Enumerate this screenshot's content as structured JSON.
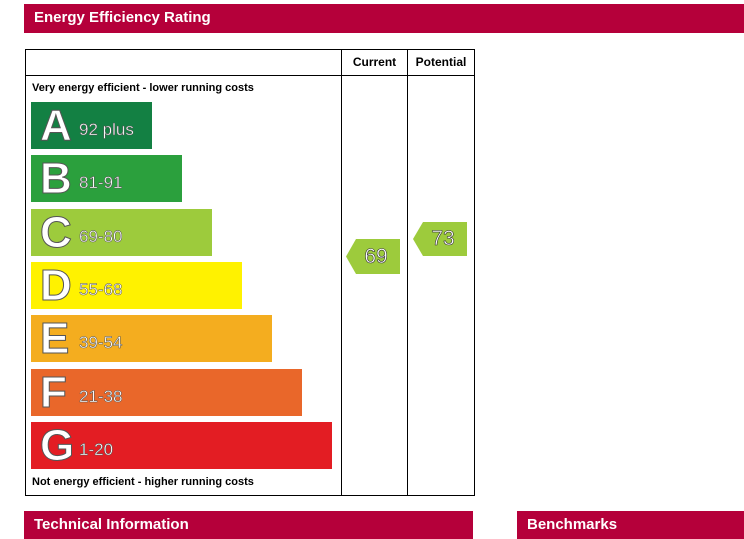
{
  "header": {
    "title": "Energy Efficiency Rating"
  },
  "columns": {
    "current": "Current",
    "potential": "Potential"
  },
  "notes": {
    "top": "Very energy efficient - lower running costs",
    "bottom": "Not energy efficient - higher running costs"
  },
  "chart_data": {
    "type": "bar",
    "bands": [
      {
        "letter": "A",
        "range": "92 plus",
        "color": "#138043"
      },
      {
        "letter": "B",
        "range": "81-91",
        "color": "#2ba03d"
      },
      {
        "letter": "C",
        "range": "69-80",
        "color": "#9dcb3c"
      },
      {
        "letter": "D",
        "range": "55-68",
        "color": "#fff200"
      },
      {
        "letter": "E",
        "range": "39-54",
        "color": "#f4ad1f"
      },
      {
        "letter": "F",
        "range": "21-38",
        "color": "#e9672a"
      },
      {
        "letter": "G",
        "range": "1-20",
        "color": "#e31d23"
      }
    ],
    "current": {
      "value": 69,
      "band": "C",
      "color": "#9dcb3c"
    },
    "potential": {
      "value": 73,
      "band": "C",
      "color": "#9dcb3c"
    }
  },
  "footer": {
    "technical": "Technical Information",
    "benchmarks": "Benchmarks"
  }
}
